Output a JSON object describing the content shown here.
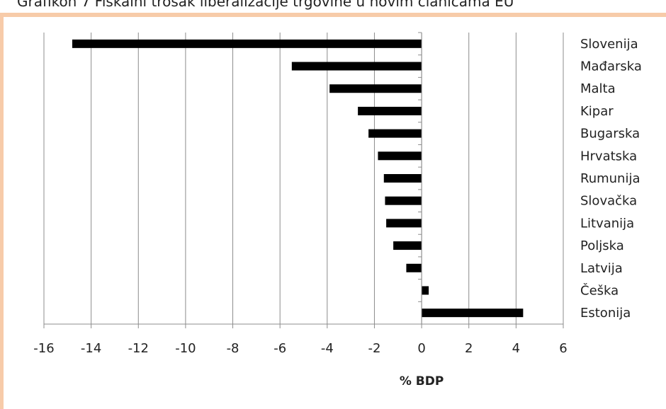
{
  "title": "Grafikon 7 Fiskalni trošak liberalizacije trgovine u novim članicama EU",
  "chart_data": {
    "type": "bar",
    "orientation": "horizontal",
    "xlabel": "% BDP",
    "xlim": [
      -16,
      6
    ],
    "xticks": [
      -16,
      -14,
      -12,
      -10,
      -8,
      -6,
      -4,
      -2,
      0,
      2,
      4,
      6
    ],
    "grid": true,
    "categories": [
      "Slovenija",
      "Mađarska",
      "Malta",
      "Kipar",
      "Bugarska",
      "Hrvatska",
      "Rumunija",
      "Slovačka",
      "Litvanija",
      "Poljska",
      "Latvija",
      "Češka",
      "Estonija"
    ],
    "values": [
      -14.8,
      -5.5,
      -3.9,
      -2.7,
      -2.25,
      -1.85,
      -1.6,
      -1.55,
      -1.5,
      -1.2,
      -0.65,
      0.3,
      4.3
    ],
    "bar_color": "#000000"
  }
}
